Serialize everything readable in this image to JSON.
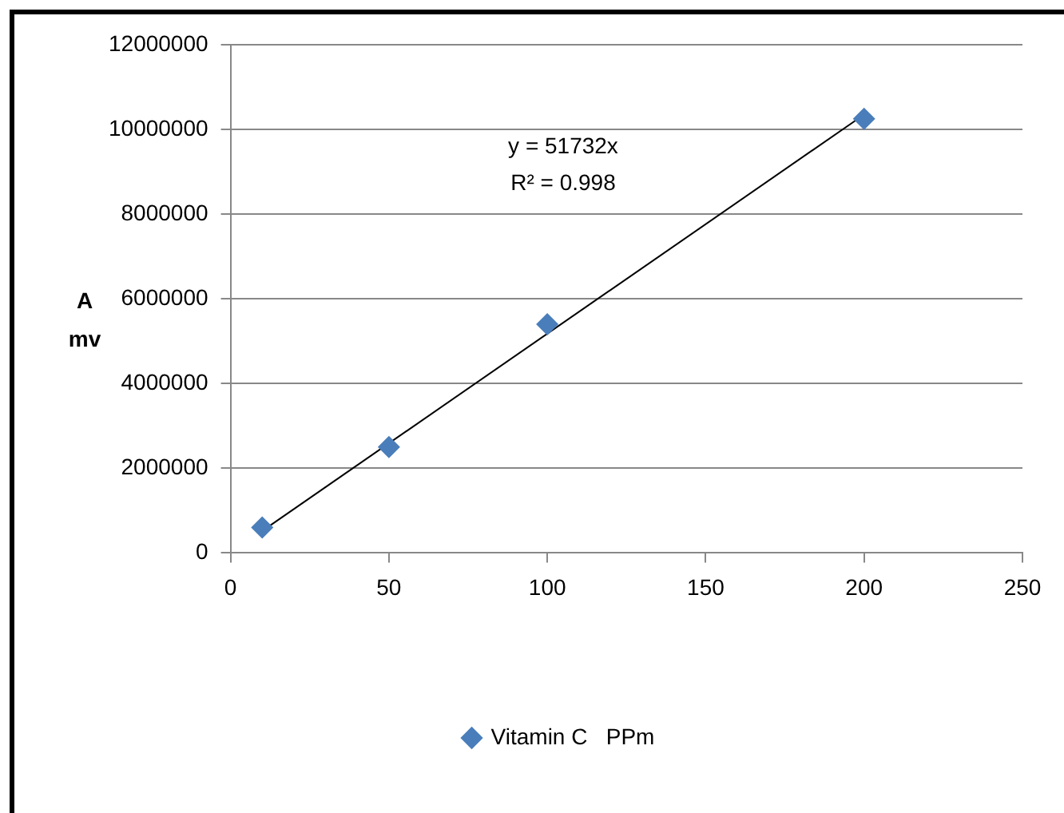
{
  "chart_data": {
    "type": "scatter",
    "ylabel": "A mv",
    "xlim": [
      0,
      250
    ],
    "xticks": [
      0,
      50,
      100,
      150,
      200,
      250
    ],
    "ylim": [
      0,
      12000000
    ],
    "yticks": [
      0,
      2000000,
      4000000,
      6000000,
      8000000,
      10000000,
      12000000
    ],
    "series": [
      {
        "name": "Vitamin C   PPm",
        "color": "#4a7ebb",
        "x": [
          10,
          50,
          100,
          200
        ],
        "values": [
          600000,
          2500000,
          5400000,
          10250000
        ],
        "marker": "diamond"
      },
      {
        "type": "line",
        "color": "#000000",
        "x": [
          10,
          200
        ],
        "values": [
          520000,
          10350000
        ],
        "marker": "none",
        "line_style": "solid"
      }
    ],
    "annotations": [
      "y = 51732x",
      "R² = 0.998"
    ],
    "grid": "y",
    "legend": "bottom"
  }
}
